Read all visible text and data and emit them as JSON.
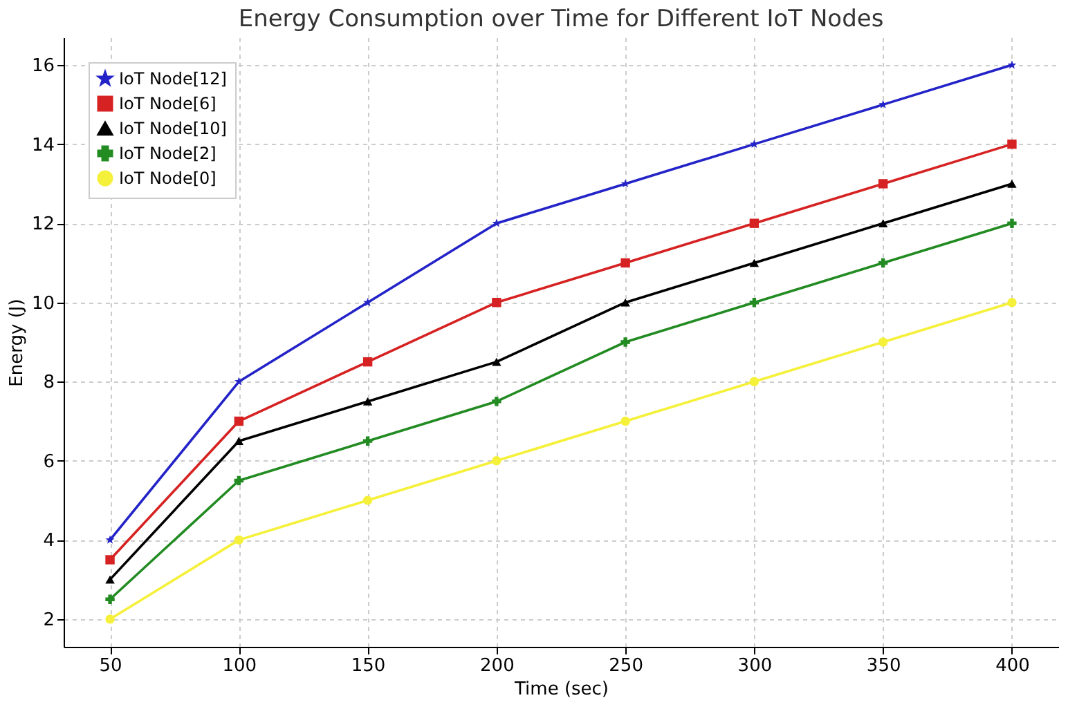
{
  "chart_data": {
    "type": "line",
    "title": "Energy Consumption over Time for Different IoT Nodes",
    "xlabel": "Time (sec)",
    "ylabel": "Energy (J)",
    "x": [
      50,
      100,
      150,
      200,
      250,
      300,
      350,
      400
    ],
    "series": [
      {
        "name": "IoT Node[12]",
        "color": "#2323c8",
        "marker": "star",
        "values": [
          4,
          8,
          10,
          12,
          13,
          14,
          15,
          16
        ]
      },
      {
        "name": "IoT Node[6]",
        "color": "#d62222",
        "marker": "square",
        "values": [
          3.5,
          7,
          8.5,
          10,
          11,
          12,
          13,
          14
        ]
      },
      {
        "name": "IoT Node[10]",
        "color": "#000000",
        "marker": "triangle",
        "values": [
          3,
          6.5,
          7.5,
          8.5,
          10,
          11,
          12,
          13
        ]
      },
      {
        "name": "IoT Node[2]",
        "color": "#228b22",
        "marker": "cross",
        "values": [
          2.5,
          5.5,
          6.5,
          7.5,
          9,
          10,
          11,
          12
        ]
      },
      {
        "name": "IoT Node[0]",
        "color": "#f5f03a",
        "marker": "circle",
        "values": [
          2,
          4,
          5,
          6,
          7,
          8,
          9,
          10
        ]
      }
    ],
    "xlim": [
      32,
      418
    ],
    "ylim": [
      1.3,
      16.7
    ],
    "xticks": [
      50,
      100,
      150,
      200,
      250,
      300,
      350,
      400
    ],
    "yticks": [
      2,
      4,
      6,
      8,
      10,
      12,
      14,
      16
    ],
    "grid": true,
    "legend": "top left",
    "line_style": "solid"
  }
}
